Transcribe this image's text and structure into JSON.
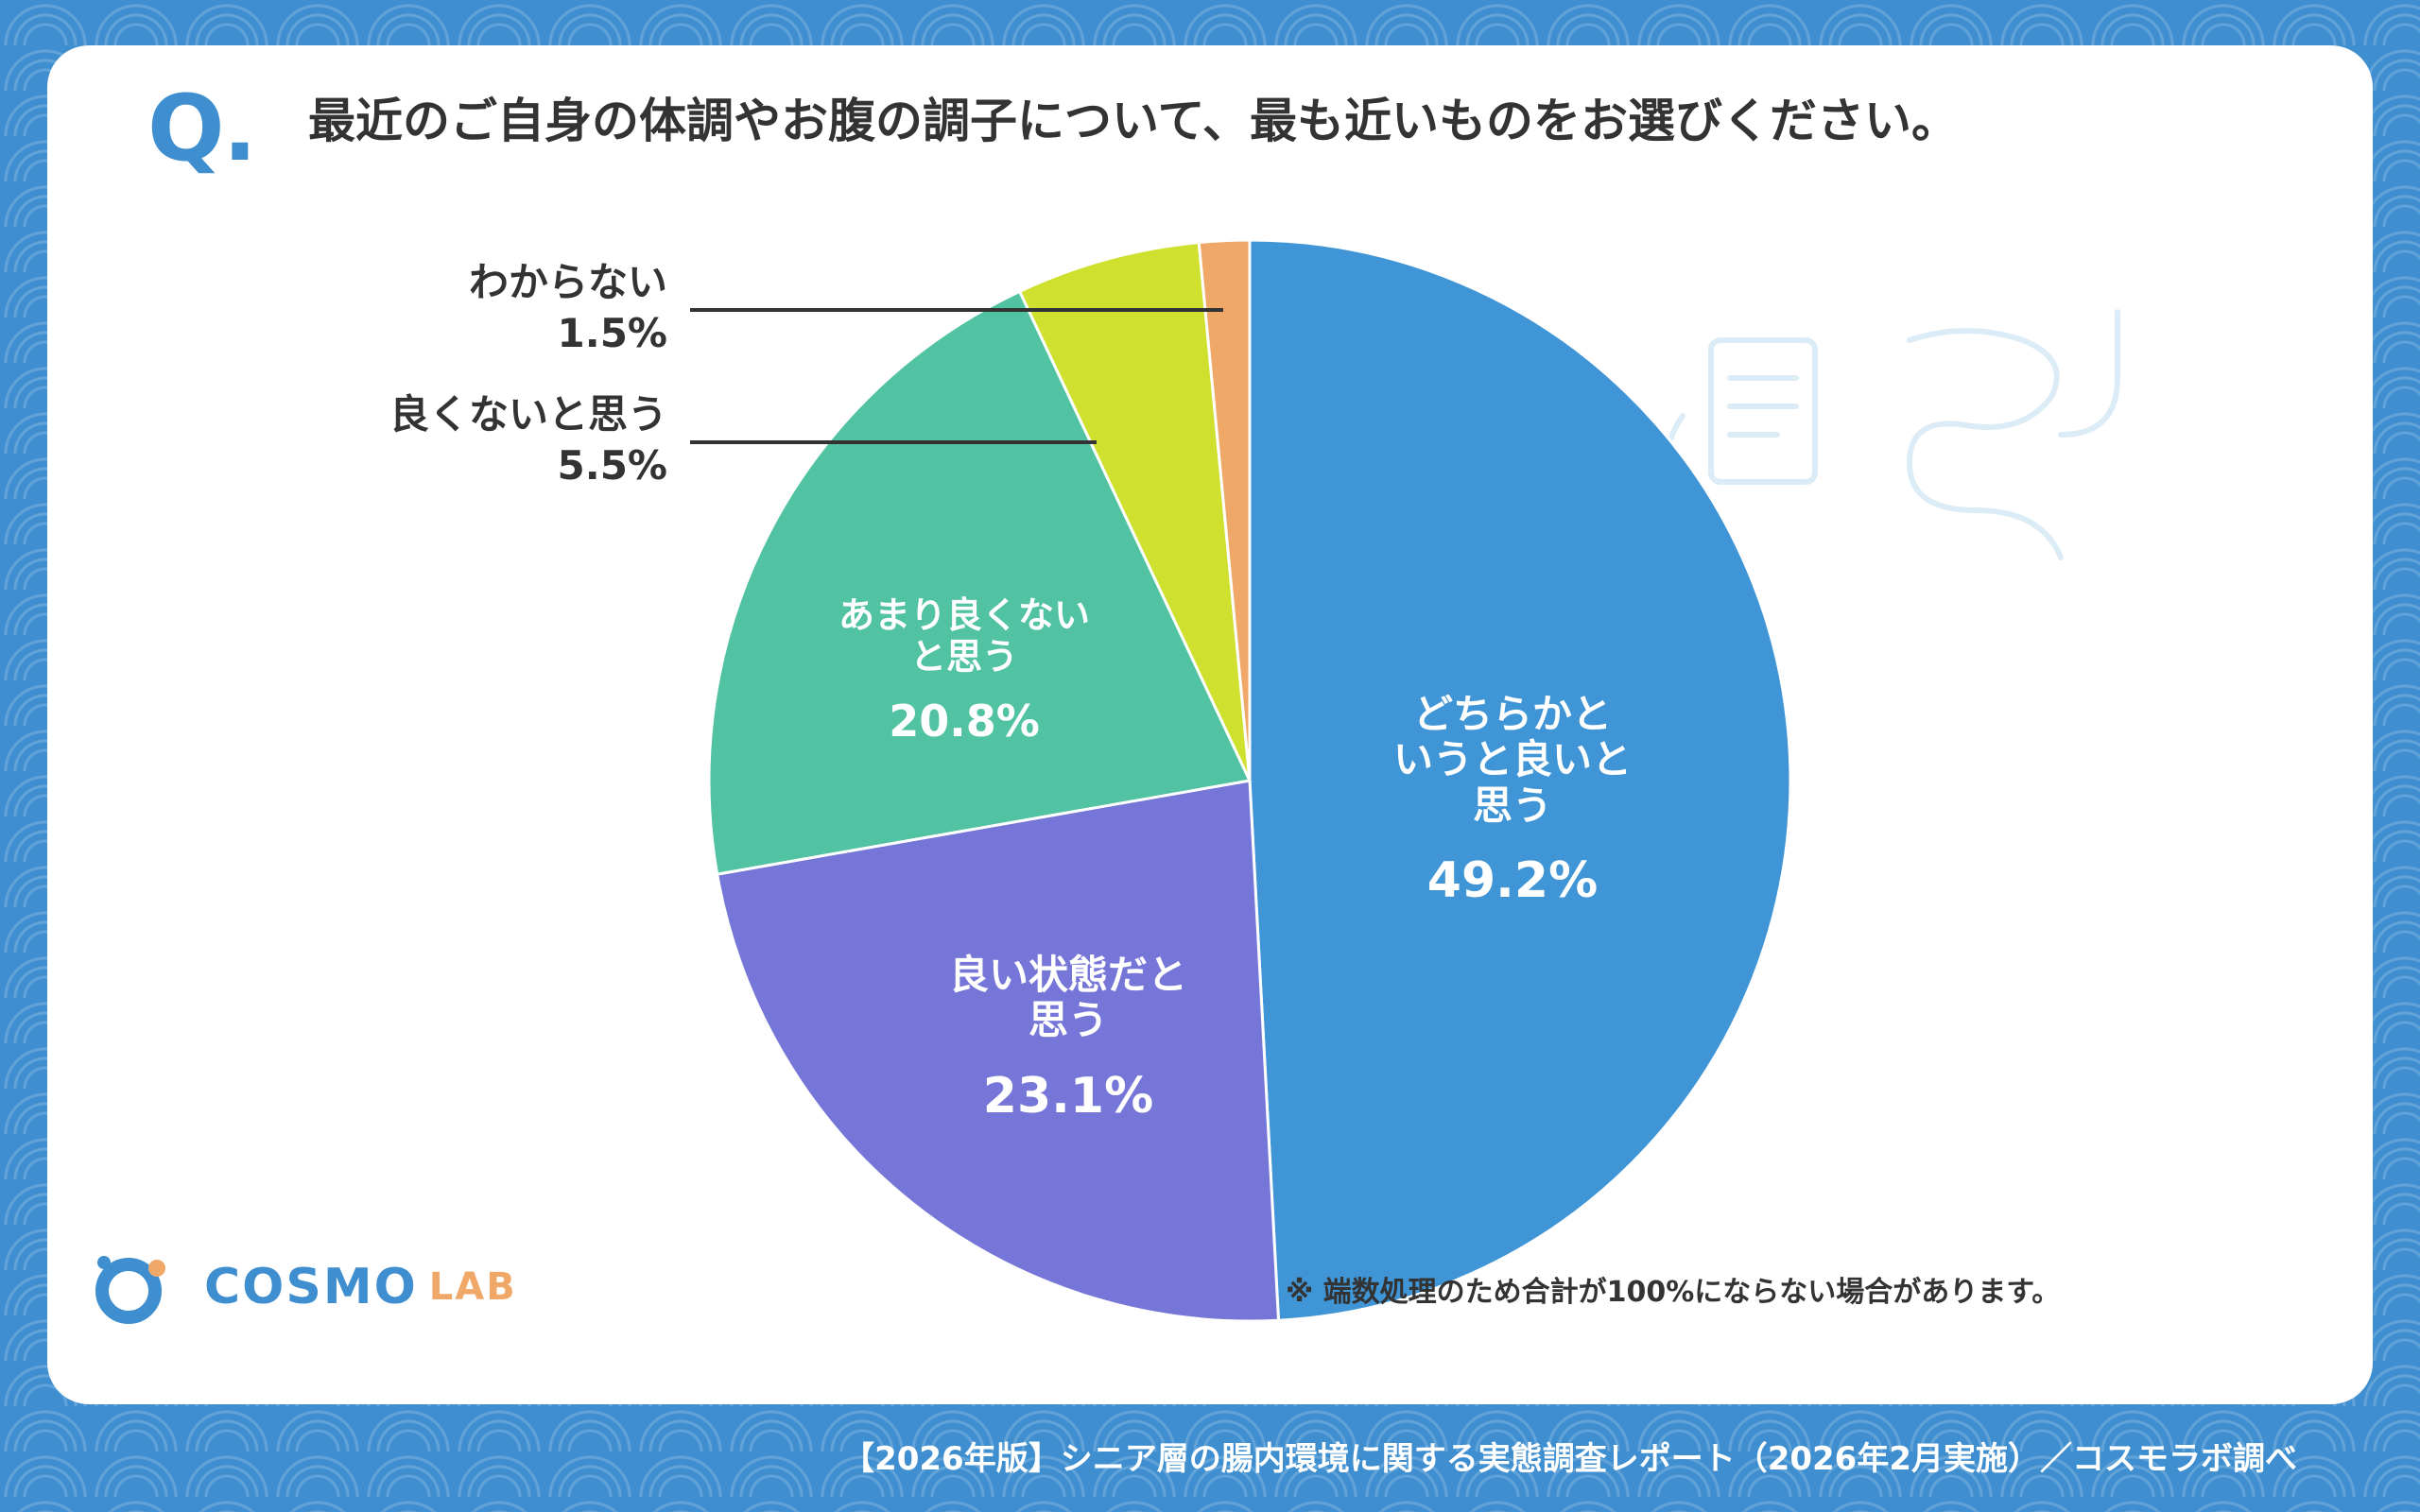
{
  "question": {
    "mark": "Q.",
    "text": "最近のご自身の体調やお腹の調子について、最も近いものをお選びください。"
  },
  "chart_data": {
    "type": "pie",
    "slices": [
      {
        "label_lines": [
          "どちらかと",
          "いうと良いと",
          "思う"
        ],
        "value": 49.2,
        "value_text": "49.2%",
        "color": "#3f95d5"
      },
      {
        "label_lines": [
          "良い状態だと",
          "思う"
        ],
        "value": 23.1,
        "value_text": "23.1%",
        "color": "#7676d8"
      },
      {
        "label_lines": [
          "あまり良くない",
          "と思う"
        ],
        "value": 20.8,
        "value_text": "20.8%",
        "color": "#52c3a2"
      },
      {
        "label_lines": [
          "良くないと思う"
        ],
        "value": 5.5,
        "value_text": "5.5%",
        "color": "#cfe02e"
      },
      {
        "label_lines": [
          "わからない"
        ],
        "value": 1.5,
        "value_text": "1.5%",
        "color": "#f0a868"
      }
    ],
    "start": "12 o'clock",
    "direction": "clockwise"
  },
  "note": "※ 端数処理のため合計が100%にならない場合があります。",
  "logo": {
    "word": "COSMO",
    "lab": "LAB"
  },
  "footer": "【2026年版】シニア層の腸内環境に関する実態調査レポート（2026年2月実施）／コスモラボ調べ",
  "colors": {
    "background": "#3f8fd0",
    "card": "#ffffff",
    "text": "#333333"
  }
}
